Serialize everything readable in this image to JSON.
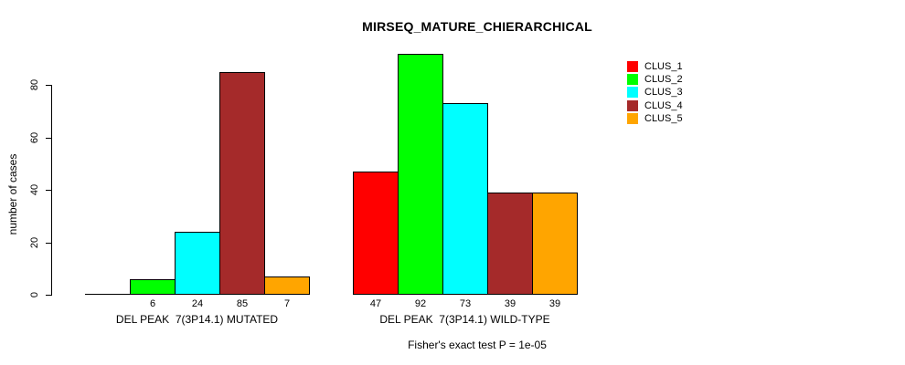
{
  "chart_data": {
    "type": "bar",
    "title": "MIRSEQ_MATURE_CHIERARCHICAL",
    "ylabel": "number of cases",
    "footnote": "Fisher's exact test P = 1e-05",
    "ylim": [
      0,
      92
    ],
    "yticks": [
      0,
      20,
      40,
      60,
      80
    ],
    "grid": false,
    "legend_position": "right",
    "legend": [
      {
        "label": "CLUS_1",
        "color": "#ff0000"
      },
      {
        "label": "CLUS_2",
        "color": "#00ff00"
      },
      {
        "label": "CLUS_3",
        "color": "#00ffff"
      },
      {
        "label": "CLUS_4",
        "color": "#a52a2a"
      },
      {
        "label": "CLUS_5",
        "color": "#ffa500"
      }
    ],
    "groups": [
      {
        "label": "DEL PEAK  7(3P14.1) MUTATED",
        "values": [
          0,
          6,
          24,
          85,
          7
        ]
      },
      {
        "label": "DEL PEAK  7(3P14.1) WILD-TYPE",
        "values": [
          47,
          92,
          73,
          39,
          39
        ]
      }
    ]
  }
}
